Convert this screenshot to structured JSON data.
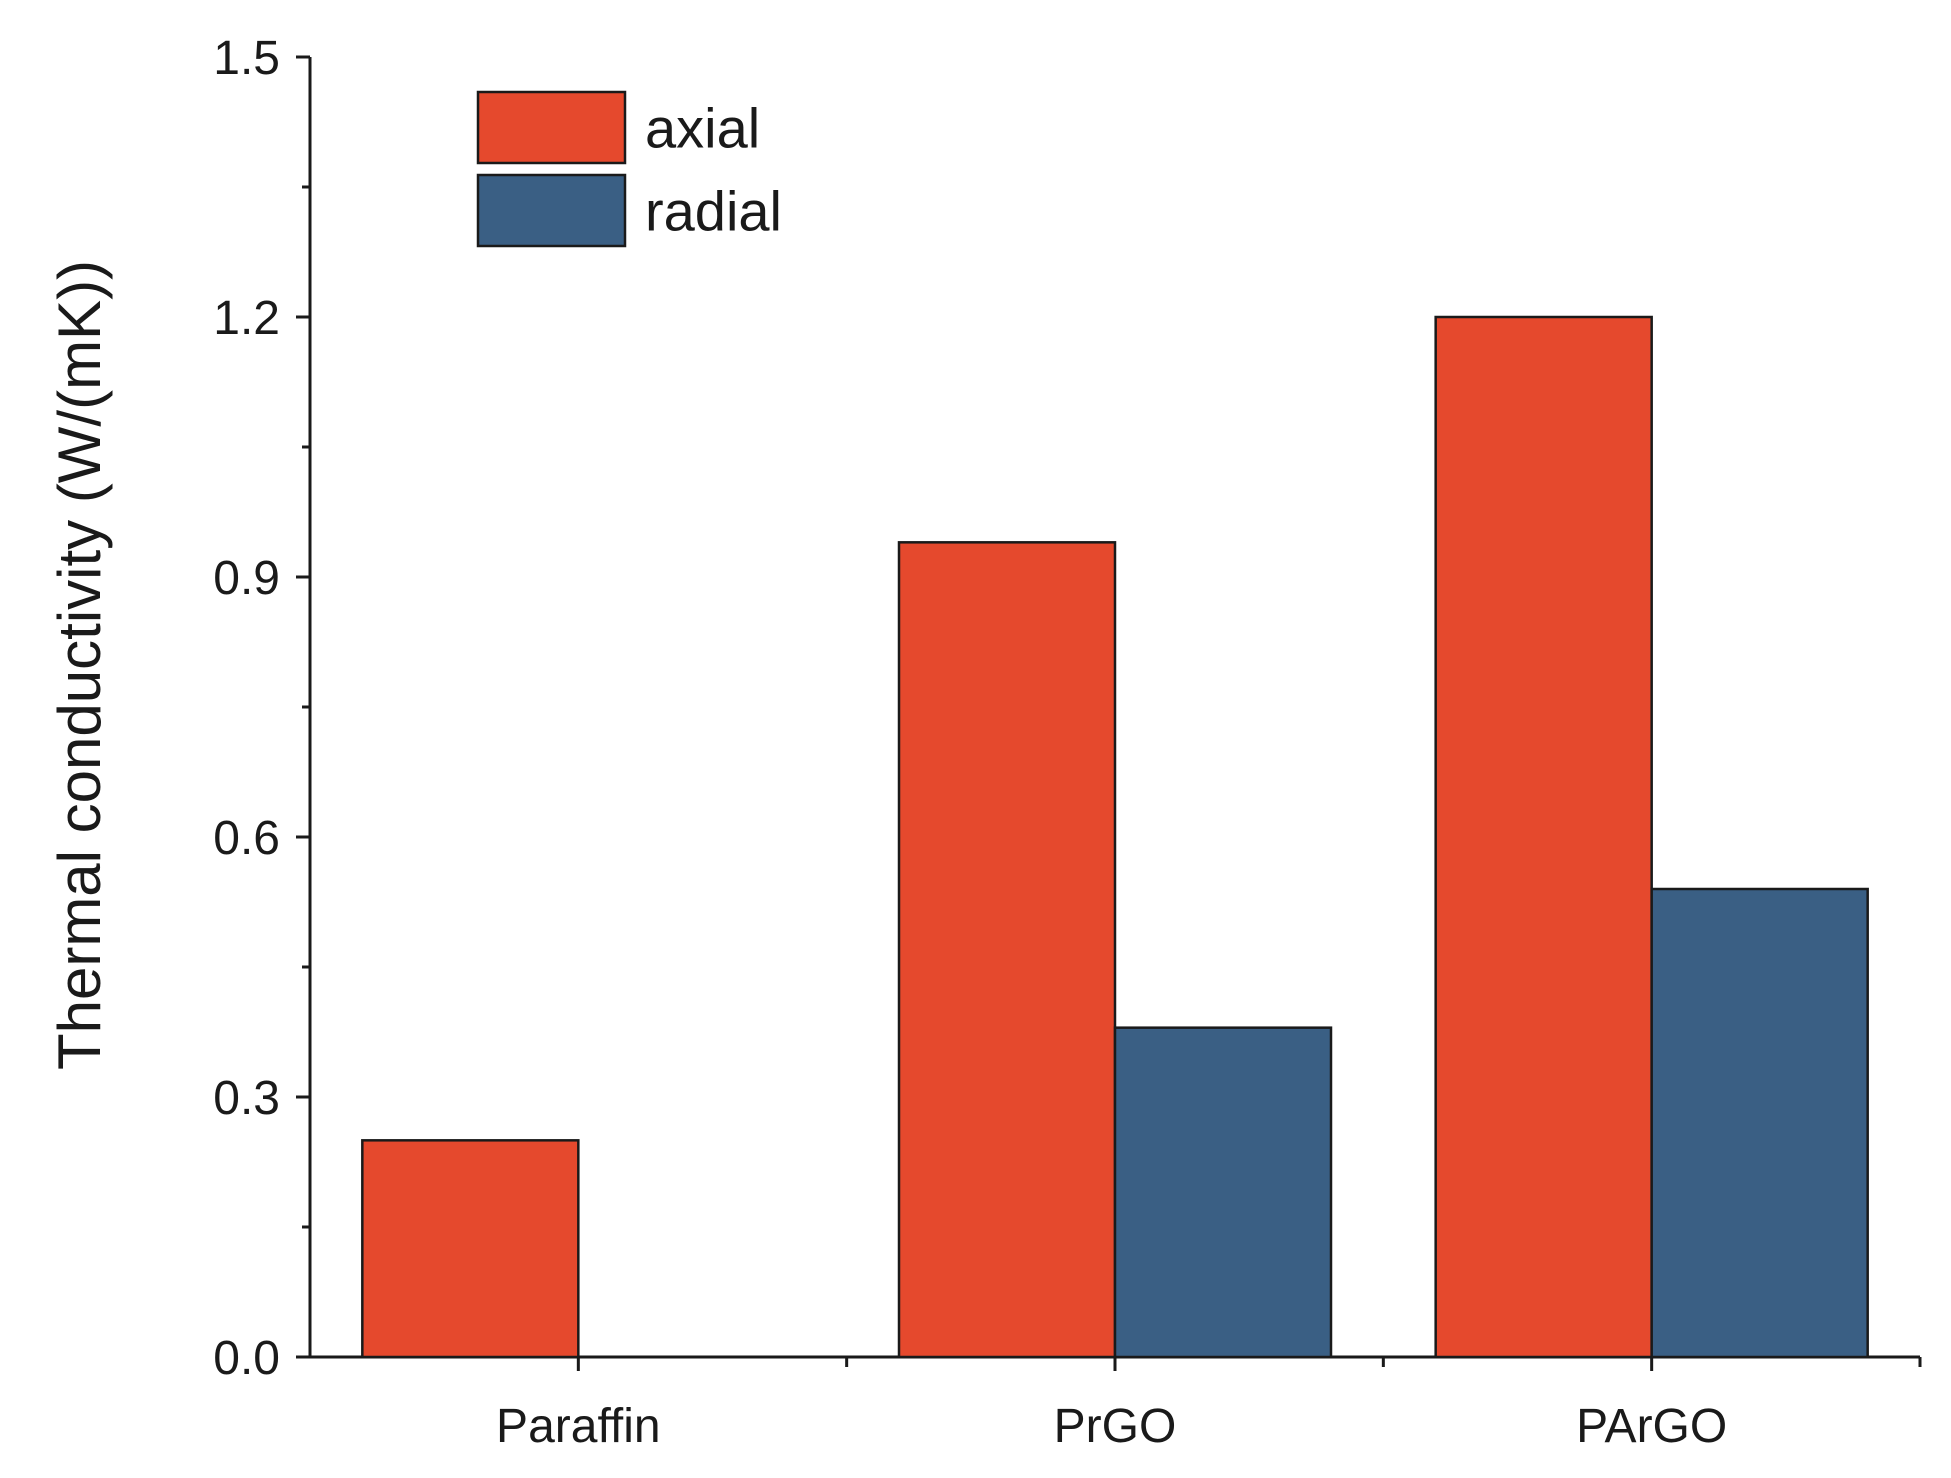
{
  "chart_data": {
    "type": "bar",
    "title": "",
    "xlabel": "",
    "ylabel": "Thermal conductivity (W/(mK))",
    "categories": [
      "Paraffin",
      "PrGO",
      "PArGO"
    ],
    "series": [
      {
        "name": "axial",
        "color": "#e5492d",
        "values": [
          0.25,
          0.94,
          1.2
        ]
      },
      {
        "name": "radial",
        "color": "#3a5f84",
        "values": [
          null,
          0.38,
          0.54
        ]
      }
    ],
    "ylim": [
      0,
      1.5
    ],
    "yticks": [
      "0.0",
      "0.3",
      "0.6",
      "0.9",
      "1.2",
      "1.5"
    ],
    "ytick_values": [
      0,
      0.3,
      0.6,
      0.9,
      1.2,
      1.5
    ],
    "grid": false,
    "legend_position": "top-left"
  }
}
